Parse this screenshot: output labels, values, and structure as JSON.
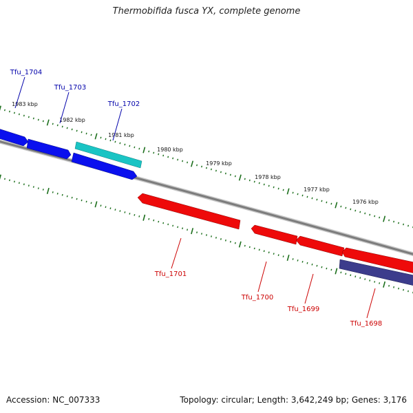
{
  "title": "Thermobifida fusca YX, complete genome",
  "footer": {
    "accession": "Accession: NC_007333",
    "topology": "Topology: circular; Length: 3,642,249 bp; Genes: 3,176"
  },
  "colors": {
    "forward_gene": "#0a10ee",
    "highlight_gene": "#1ac4c4",
    "reverse_gene": "#ee0a0a",
    "other_gene": "#3c3c8c",
    "backbone": "#808080",
    "tick": "#1b6e1b",
    "forward_label": "#0000aa",
    "reverse_label": "#cc0000"
  },
  "kbp_labels": [
    "1983 kbp",
    "1982 kbp",
    "1981 kbp",
    "1980 kbp",
    "1979 kbp",
    "1978 kbp",
    "1977 kbp",
    "1976 kbp"
  ],
  "genes": {
    "forward": [
      "Tfu_1704",
      "Tfu_1703",
      "Tfu_1702"
    ],
    "reverse": [
      "Tfu_1701",
      "Tfu_1700",
      "Tfu_1699",
      "Tfu_1698"
    ]
  }
}
